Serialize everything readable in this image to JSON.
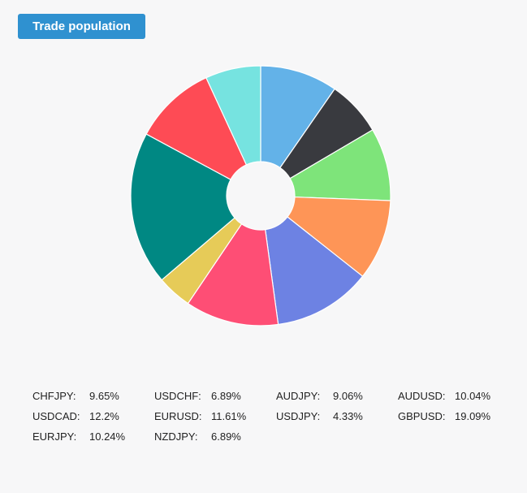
{
  "header": {
    "button_label": "Trade population"
  },
  "chart_data": {
    "type": "pie",
    "style": "donut",
    "slices": [
      {
        "name": "CHFJPY",
        "value": 9.65,
        "label": "9.65%",
        "color": "#63b2e8"
      },
      {
        "name": "USDCHF",
        "value": 6.89,
        "label": "6.89%",
        "color": "#393a3f"
      },
      {
        "name": "AUDJPY",
        "value": 9.06,
        "label": "9.06%",
        "color": "#7ee47a"
      },
      {
        "name": "AUDUSD",
        "value": 10.04,
        "label": "10.04%",
        "color": "#fe9557"
      },
      {
        "name": "USDCAD",
        "value": 12.2,
        "label": "12.2%",
        "color": "#6d82e3"
      },
      {
        "name": "EURUSD",
        "value": 11.61,
        "label": "11.61%",
        "color": "#fe4e75"
      },
      {
        "name": "USDJPY",
        "value": 4.33,
        "label": "4.33%",
        "color": "#e6cb58"
      },
      {
        "name": "GBPUSD",
        "value": 19.09,
        "label": "19.09%",
        "color": "#008883"
      },
      {
        "name": "EURJPY",
        "value": 10.24,
        "label": "10.24%",
        "color": "#fe4b55"
      },
      {
        "name": "NZDJPY",
        "value": 6.89,
        "label": "6.89%",
        "color": "#76e3e0"
      }
    ],
    "legend_position": "bottom"
  },
  "legend": {
    "items": [
      {
        "name": "CHFJPY:",
        "value": "9.65%"
      },
      {
        "name": "USDCHF:",
        "value": "6.89%"
      },
      {
        "name": "AUDJPY:",
        "value": "9.06%"
      },
      {
        "name": "AUDUSD:",
        "value": "10.04%"
      },
      {
        "name": "USDCAD:",
        "value": "12.2%"
      },
      {
        "name": "EURUSD:",
        "value": "11.61%"
      },
      {
        "name": "USDJPY:",
        "value": "4.33%"
      },
      {
        "name": "GBPUSD:",
        "value": "19.09%"
      },
      {
        "name": "EURJPY:",
        "value": "10.24%"
      },
      {
        "name": "NZDJPY:",
        "value": "6.89%"
      }
    ]
  }
}
